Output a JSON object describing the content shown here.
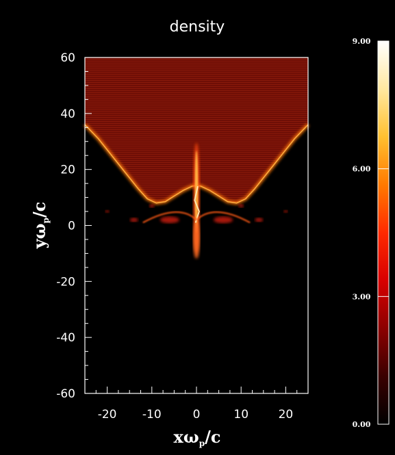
{
  "chart_data": {
    "type": "heatmap",
    "title": "density",
    "xlabel": "xω_p/c",
    "ylabel": "yω_p/c",
    "xlim": [
      -25,
      25
    ],
    "ylim": [
      -60,
      60
    ],
    "x_ticks": [
      "-20",
      "-10",
      "0",
      "10",
      "20"
    ],
    "x_tick_values": [
      -20,
      -10,
      0,
      10,
      20
    ],
    "y_ticks": [
      "60",
      "40",
      "20",
      "0",
      "-20",
      "-40",
      "-60"
    ],
    "y_tick_values": [
      60,
      40,
      20,
      0,
      -20,
      -40,
      -60
    ],
    "colorbar": {
      "range": [
        0,
        9
      ],
      "labels": [
        "9.00",
        "6.00",
        "3.00",
        "0.00"
      ],
      "label_values": [
        9,
        6,
        3,
        0
      ],
      "colors": [
        "#000000",
        "#3a0000",
        "#8c0000",
        "#d80000",
        "#ff2a00",
        "#ff7a00",
        "#ffc030",
        "#ffe8a0",
        "#ffffff"
      ]
    },
    "colors": {
      "background": "#000000",
      "plasma_fill": "#7a1008",
      "plasma_edge": "#ff7a10",
      "hot_core": "#ffe6b0"
    }
  }
}
